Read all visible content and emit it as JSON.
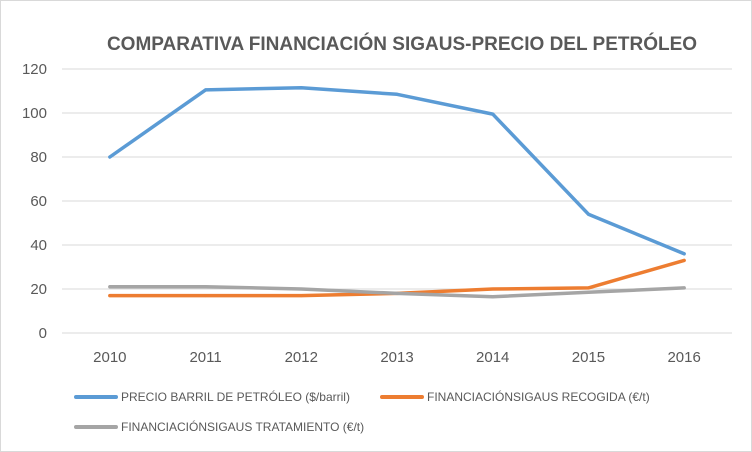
{
  "chart_data": {
    "type": "line",
    "title": "COMPARATIVA FINANCIACIÓN SIGAUS-PRECIO DEL PETRÓLEO",
    "xlabel": "",
    "ylabel": "",
    "categories": [
      "2010",
      "2011",
      "2012",
      "2013",
      "2014",
      "2015",
      "2016"
    ],
    "ylim": [
      0,
      120
    ],
    "yticks": [
      0,
      20,
      40,
      60,
      80,
      100,
      120
    ],
    "grid": true,
    "legend_position": "bottom",
    "series": [
      {
        "name": "PRECIO BARRIL DE PETRÓLEO ($/barril)",
        "color": "#5b9bd5",
        "values": [
          80,
          110.5,
          111.5,
          108.5,
          99.5,
          54,
          36
        ]
      },
      {
        "name": "FINANCIACIÓNSIGAUS RECOGIDA (€/t)",
        "color": "#ed7d31",
        "values": [
          17,
          17,
          17,
          18,
          20,
          20.5,
          33
        ]
      },
      {
        "name": "FINANCIACIÓNSIGAUS TRATAMIENTO (€/t)",
        "color": "#a5a5a5",
        "values": [
          21,
          21,
          20,
          18,
          16.5,
          18.5,
          20.5
        ]
      }
    ]
  }
}
